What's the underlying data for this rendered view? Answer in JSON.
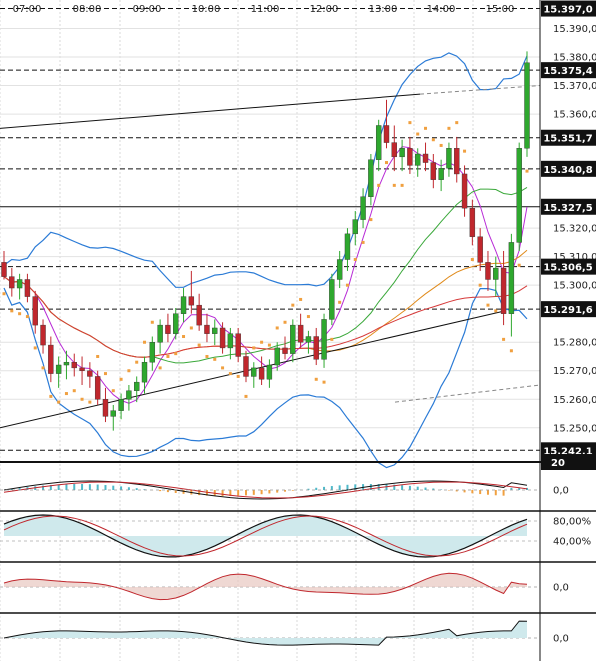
{
  "colors": {
    "background": "#ffffff",
    "candle_up": "#2ea82e",
    "candle_down": "#c0272d",
    "bollinger": "#2b7bd6",
    "sma_short": "#b82bd6",
    "sma_mid": "#3aa83a",
    "sma_long": "#e08a1a",
    "sma_longest": "#d63a3a",
    "sar": "#f0a040",
    "axis_box": "#111111",
    "macd_hist_up": "#4fb8c8",
    "macd_hist_down": "#f0a040",
    "osc_fill": "#cfe9ec",
    "osc_fill_neg": "#e8c8c0"
  },
  "chart_data": [
    {
      "type": "candlestick",
      "panel": "price",
      "title": "",
      "x_tick_labels": [
        "07:00",
        "08:00",
        "09:00",
        "10:00",
        "11:00",
        "12:00",
        "13:00",
        "14:00",
        "15:00"
      ],
      "y_tick_labels": [
        "15.390,0",
        "15.380,0",
        "15.370,0",
        "15.360,0",
        "15.320,0",
        "15.310,0",
        "15.300,0",
        "15.280,0",
        "15.270,0",
        "15.260,0",
        "15.250,0"
      ],
      "ylim": [
        15238,
        15400
      ],
      "price_levels": [
        "15.397,0",
        "15.375,4",
        "15.351,7",
        "15.340,8",
        "15.327,5",
        "15.306,5",
        "15.291,6",
        "15.242,1"
      ],
      "bottom_box_label": "20",
      "candles": [
        [
          15308,
          15312,
          15302,
          15303
        ],
        [
          15303,
          15306,
          15296,
          15299
        ],
        [
          15299,
          15304,
          15295,
          15302
        ],
        [
          15302,
          15304,
          15294,
          15296
        ],
        [
          15296,
          15298,
          15283,
          15286
        ],
        [
          15286,
          15288,
          15276,
          15279
        ],
        [
          15279,
          15282,
          15266,
          15269
        ],
        [
          15269,
          15275,
          15264,
          15272
        ],
        [
          15272,
          15277,
          15267,
          15273
        ],
        [
          15273,
          15276,
          15268,
          15271
        ],
        [
          15271,
          15275,
          15265,
          15270
        ],
        [
          15270,
          15273,
          15264,
          15268
        ],
        [
          15268,
          15270,
          15258,
          15260
        ],
        [
          15260,
          15264,
          15252,
          15254
        ],
        [
          15254,
          15258,
          15249,
          15256
        ],
        [
          15256,
          15262,
          15253,
          15260
        ],
        [
          15260,
          15265,
          15256,
          15263
        ],
        [
          15263,
          15268,
          15259,
          15266
        ],
        [
          15266,
          15275,
          15262,
          15273
        ],
        [
          15273,
          15282,
          15270,
          15280
        ],
        [
          15280,
          15288,
          15276,
          15286
        ],
        [
          15286,
          15290,
          15280,
          15283
        ],
        [
          15283,
          15292,
          15281,
          15290
        ],
        [
          15290,
          15299,
          15287,
          15296
        ],
        [
          15296,
          15305,
          15290,
          15293
        ],
        [
          15293,
          15297,
          15284,
          15286
        ],
        [
          15286,
          15290,
          15280,
          15283
        ],
        [
          15283,
          15288,
          15279,
          15285
        ],
        [
          15285,
          15287,
          15276,
          15278
        ],
        [
          15278,
          15285,
          15274,
          15283
        ],
        [
          15283,
          15285,
          15273,
          15275
        ],
        [
          15275,
          15277,
          15266,
          15268
        ],
        [
          15268,
          15273,
          15264,
          15271
        ],
        [
          15271,
          15275,
          15265,
          15267
        ],
        [
          15267,
          15274,
          15264,
          15272
        ],
        [
          15272,
          15280,
          15270,
          15278
        ],
        [
          15278,
          15282,
          15274,
          15276
        ],
        [
          15276,
          15288,
          15273,
          15286
        ],
        [
          15286,
          15290,
          15278,
          15280
        ],
        [
          15280,
          15284,
          15276,
          15282
        ],
        [
          15282,
          15285,
          15272,
          15274
        ],
        [
          15274,
          15290,
          15271,
          15288
        ],
        [
          15288,
          15304,
          15286,
          15302
        ],
        [
          15302,
          15312,
          15299,
          15309
        ],
        [
          15309,
          15320,
          15305,
          15318
        ],
        [
          15318,
          15326,
          15314,
          15323
        ],
        [
          15323,
          15334,
          15320,
          15331
        ],
        [
          15331,
          15346,
          15328,
          15344
        ],
        [
          15344,
          15358,
          15340,
          15356
        ],
        [
          15356,
          15365,
          15348,
          15350
        ],
        [
          15350,
          15356,
          15340,
          15345
        ],
        [
          15345,
          15351,
          15340,
          15348
        ],
        [
          15348,
          15352,
          15339,
          15342
        ],
        [
          15342,
          15348,
          15338,
          15346
        ],
        [
          15346,
          15350,
          15340,
          15343
        ],
        [
          15343,
          15346,
          15334,
          15337
        ],
        [
          15337,
          15344,
          15333,
          15341
        ],
        [
          15341,
          15350,
          15338,
          15348
        ],
        [
          15348,
          15352,
          15336,
          15339
        ],
        [
          15339,
          15342,
          15324,
          15327
        ],
        [
          15327,
          15330,
          15314,
          15317
        ],
        [
          15317,
          15320,
          15305,
          15308
        ],
        [
          15308,
          15312,
          15298,
          15302
        ],
        [
          15302,
          15310,
          15296,
          15306
        ],
        [
          15306,
          15312,
          15286,
          15290
        ],
        [
          15290,
          15318,
          15282,
          15315
        ],
        [
          15315,
          15350,
          15312,
          15348
        ],
        [
          15348,
          15382,
          15345,
          15378
        ]
      ]
    },
    {
      "type": "line",
      "panel": "macd",
      "title": "",
      "y_tick_labels": [
        "0,0"
      ],
      "ylim": [
        -1,
        1
      ]
    },
    {
      "type": "line",
      "panel": "stochastic",
      "title": "",
      "y_tick_labels": [
        "80,00%",
        "40,00%"
      ],
      "ylim": [
        0,
        100
      ]
    },
    {
      "type": "line",
      "panel": "momentum",
      "title": "",
      "y_tick_labels": [
        "0,0"
      ],
      "ylim": [
        -1,
        1
      ]
    },
    {
      "type": "area",
      "panel": "oscillator",
      "title": "",
      "y_tick_labels": [
        "0,0"
      ],
      "ylim": [
        -1,
        1
      ]
    }
  ]
}
